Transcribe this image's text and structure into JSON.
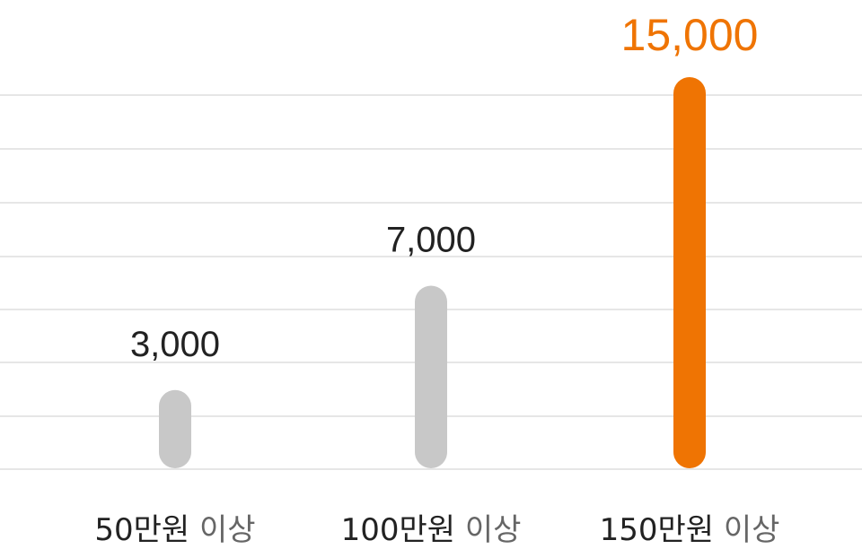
{
  "chart_data": {
    "type": "bar",
    "categories": [
      "50만원",
      "100만원",
      "150만원"
    ],
    "category_suffix": "이상",
    "values": [
      3000,
      7000,
      15000
    ],
    "value_labels": [
      "3,000",
      "7,000",
      "15,000"
    ],
    "highlight_index": 2,
    "ylim": [
      0,
      15000
    ],
    "grid": true,
    "title": "",
    "xlabel": "",
    "ylabel": ""
  },
  "colors": {
    "bar_default": "#c8c8c8",
    "bar_highlight": "#ef7403",
    "grid": "#e6e6e6",
    "text": "#222222",
    "text_muted": "#666666"
  }
}
